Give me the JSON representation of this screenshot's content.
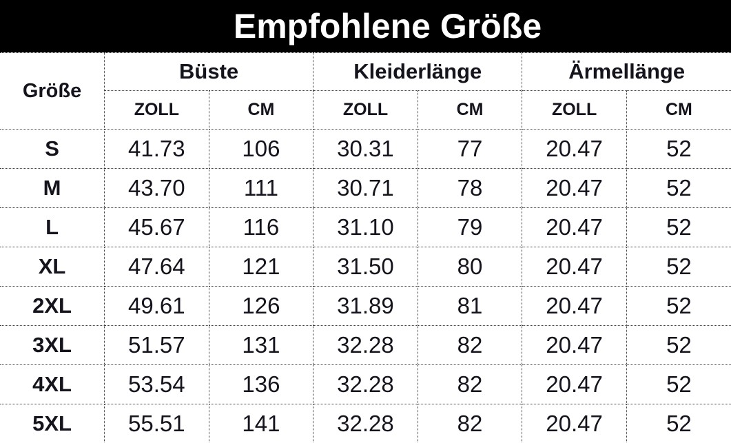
{
  "title": "Empfohlene Größe",
  "colors": {
    "title_bar_bg": "#000000",
    "title_text": "#ffffff",
    "table_bg": "#ffffff",
    "table_text": "#14141d",
    "border": "#3c3c3c"
  },
  "table": {
    "corner_header": "Größe",
    "groups": [
      "Büste",
      "Kleiderlänge",
      "Ärmellänge"
    ],
    "unit_headers": [
      "ZOLL",
      "CM",
      "ZOLL",
      "CM",
      "ZOLL",
      "CM"
    ],
    "rows": [
      {
        "size": "S",
        "values": [
          "41.73",
          "106",
          "30.31",
          "77",
          "20.47",
          "52"
        ]
      },
      {
        "size": "M",
        "values": [
          "43.70",
          "111",
          "30.71",
          "78",
          "20.47",
          "52"
        ]
      },
      {
        "size": "L",
        "values": [
          "45.67",
          "116",
          "31.10",
          "79",
          "20.47",
          "52"
        ]
      },
      {
        "size": "XL",
        "values": [
          "47.64",
          "121",
          "31.50",
          "80",
          "20.47",
          "52"
        ]
      },
      {
        "size": "2XL",
        "values": [
          "49.61",
          "126",
          "31.89",
          "81",
          "20.47",
          "52"
        ]
      },
      {
        "size": "3XL",
        "values": [
          "51.57",
          "131",
          "32.28",
          "82",
          "20.47",
          "52"
        ]
      },
      {
        "size": "4XL",
        "values": [
          "53.54",
          "136",
          "32.28",
          "82",
          "20.47",
          "52"
        ]
      },
      {
        "size": "5XL",
        "values": [
          "55.51",
          "141",
          "32.28",
          "82",
          "20.47",
          "52"
        ]
      }
    ]
  },
  "chart_data": {
    "type": "table",
    "title": "Empfohlene Größe",
    "columns": [
      "Größe",
      "Büste ZOLL",
      "Büste CM",
      "Kleiderlänge ZOLL",
      "Kleiderlänge CM",
      "Ärmellänge ZOLL",
      "Ärmellänge CM"
    ],
    "rows": [
      [
        "S",
        41.73,
        106,
        30.31,
        77,
        20.47,
        52
      ],
      [
        "M",
        43.7,
        111,
        30.71,
        78,
        20.47,
        52
      ],
      [
        "L",
        45.67,
        116,
        31.1,
        79,
        20.47,
        52
      ],
      [
        "XL",
        47.64,
        121,
        31.5,
        80,
        20.47,
        52
      ],
      [
        "2XL",
        49.61,
        126,
        31.89,
        81,
        20.47,
        52
      ],
      [
        "3XL",
        51.57,
        131,
        32.28,
        82,
        20.47,
        52
      ],
      [
        "4XL",
        53.54,
        136,
        32.28,
        82,
        20.47,
        52
      ],
      [
        "5XL",
        55.51,
        141,
        32.28,
        82,
        20.47,
        52
      ]
    ]
  }
}
